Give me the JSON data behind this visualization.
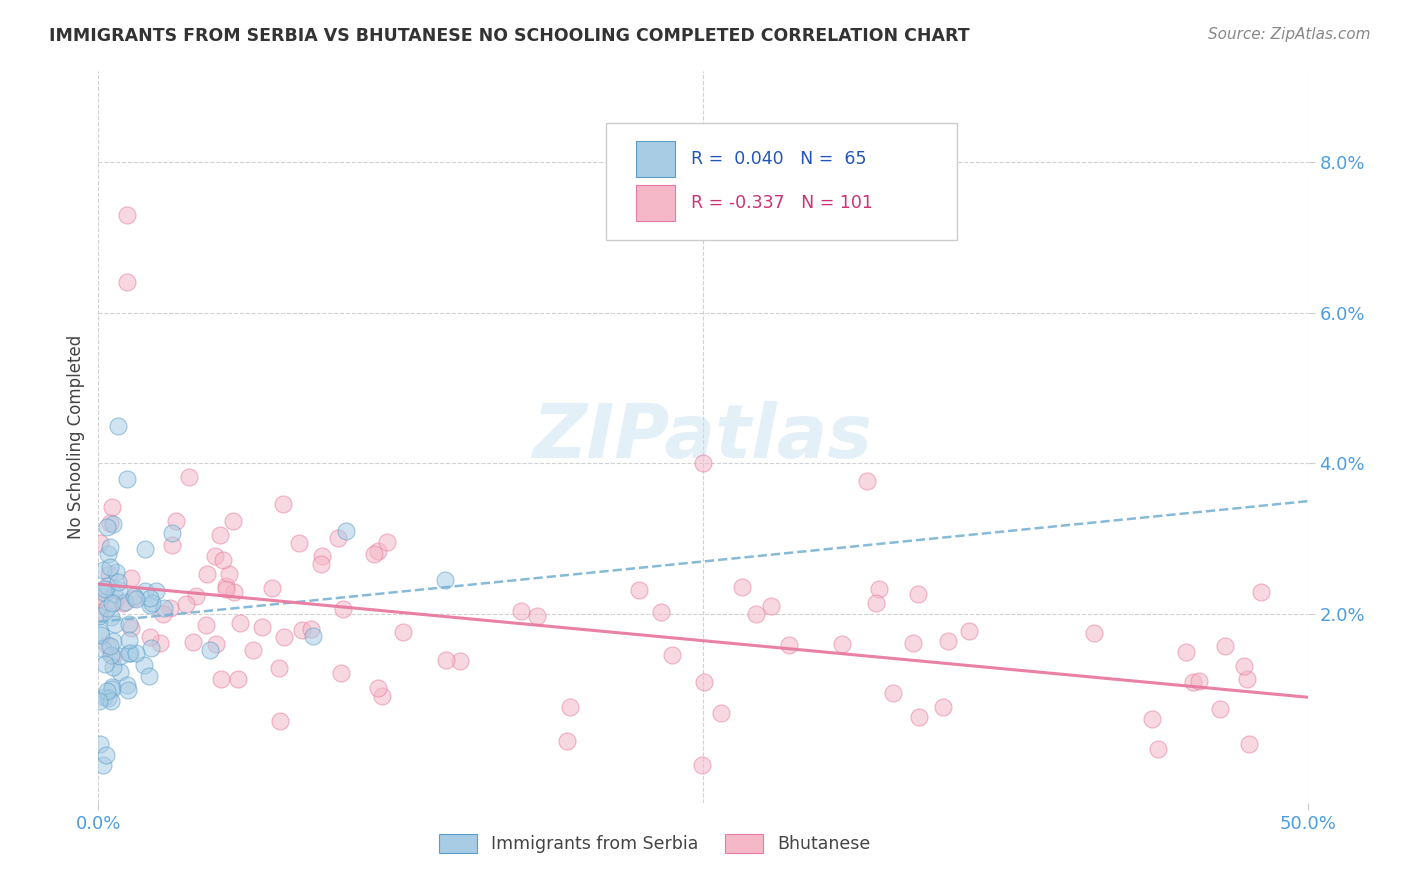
{
  "title": "IMMIGRANTS FROM SERBIA VS BHUTANESE NO SCHOOLING COMPLETED CORRELATION CHART",
  "source": "Source: ZipAtlas.com",
  "ylabel": "No Schooling Completed",
  "legend_label1": "Immigrants from Serbia",
  "legend_label2": "Bhutanese",
  "R1": 0.04,
  "N1": 65,
  "R2": -0.337,
  "N2": 101,
  "scatter_color1": "#a8cce4",
  "scatter_color2": "#f4b8c8",
  "scatter_edge1": "#5a9ec9",
  "scatter_edge2": "#e87aa0",
  "trend_color1": "#7ab3d4",
  "trend_color2": "#e87aa0",
  "background_color": "#ffffff",
  "grid_color": "#cccccc",
  "title_color": "#333333",
  "axis_label_color": "#444444",
  "tick_color": "#4d9de0",
  "xlim": [
    0.0,
    0.5
  ],
  "ylim": [
    -0.005,
    0.092
  ],
  "watermark": "ZIPatlas",
  "y_tick_values": [
    0.02,
    0.04,
    0.06,
    0.08
  ],
  "y_tick_labels": [
    "2.0%",
    "4.0%",
    "6.0%",
    "8.0%"
  ],
  "trend1_start_y": 0.019,
  "trend1_end_y": 0.035,
  "trend2_start_y": 0.024,
  "trend2_end_y": 0.009
}
